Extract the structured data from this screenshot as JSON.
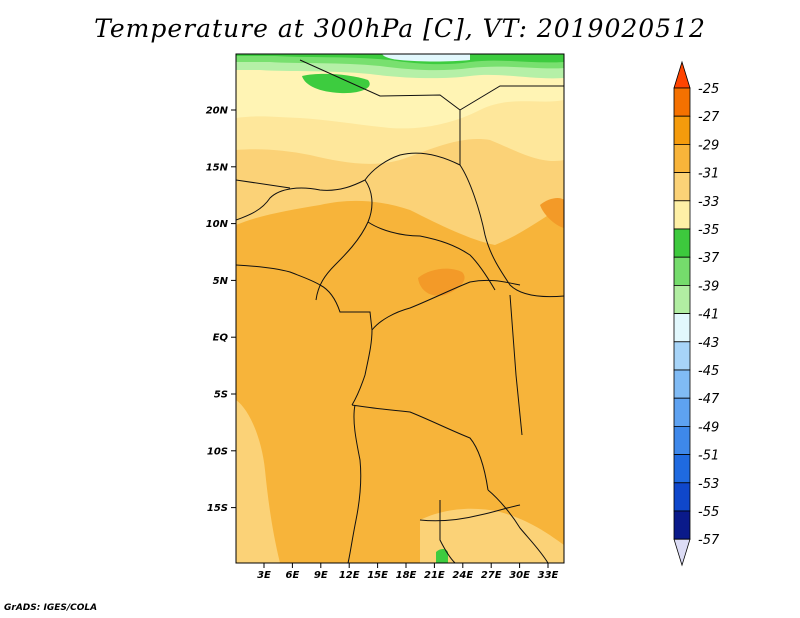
{
  "title": "Temperature at 300hPa [C], VT: 2019020512",
  "credit": "GrADS: IGES/COLA",
  "map": {
    "lat_labels": [
      "20N",
      "15N",
      "10N",
      "5N",
      "EQ",
      "5S",
      "10S",
      "15S"
    ],
    "lon_labels": [
      "3E",
      "6E",
      "9E",
      "12E",
      "15E",
      "18E",
      "21E",
      "24E",
      "27E",
      "30E",
      "33E"
    ],
    "colors": {
      "base": "#f7b43a",
      "light_orange": "#fbd277",
      "pale_yellow": "#fee79b",
      "cream": "#fff4b4",
      "dark_orange": "#f39a28",
      "green_dark": "#3dcc3f",
      "green_mid": "#78e06f",
      "green_light": "#b5f0a7",
      "pale_cyan": "#e2f8fd"
    }
  },
  "colorbar": {
    "labels": [
      "-25",
      "-27",
      "-29",
      "-31",
      "-33",
      "-35",
      "-37",
      "-39",
      "-41",
      "-43",
      "-45",
      "-47",
      "-49",
      "-51",
      "-53",
      "-55",
      "-57"
    ],
    "colors": [
      "#ff4400",
      "#f57100",
      "#f59b0c",
      "#f8b43a",
      "#fbd277",
      "#fef0a6",
      "#3dc93d",
      "#75dc6c",
      "#b1eea2",
      "#e2f8fd",
      "#a7d4f8",
      "#80bbf5",
      "#5ea2f1",
      "#3e88ea",
      "#1f6ae0",
      "#0f47cb",
      "#0a1a8a",
      "#dcdcf5"
    ]
  }
}
